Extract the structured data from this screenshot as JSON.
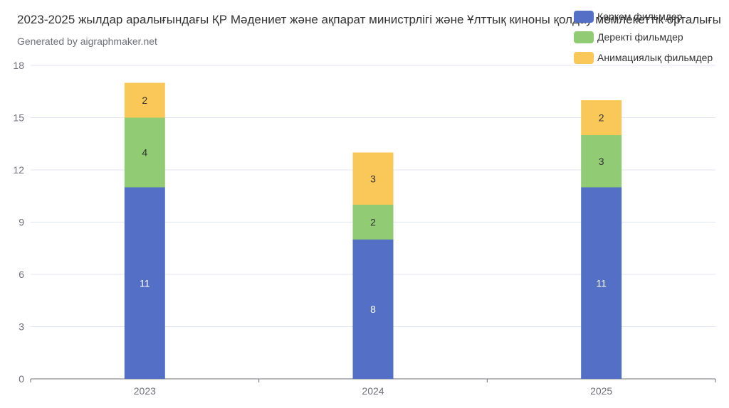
{
  "header": {
    "title": "2023-2025 жылдар аралығындағы ҚР Мәдениет және ақпарат министрлігі және Ұлттық киноны қолдау мемлекеттік орталығы",
    "subtitle": "Generated by aigraphmaker.net"
  },
  "legend": {
    "items": [
      {
        "label": "Көркем фильмдер",
        "color": "#5470c6"
      },
      {
        "label": "Деректі фильмдер",
        "color": "#91cc75"
      },
      {
        "label": "Анимациялық фильмдер",
        "color": "#fac858"
      }
    ]
  },
  "chart_data": {
    "type": "bar",
    "stacked": true,
    "categories": [
      "2023",
      "2024",
      "2025"
    ],
    "series": [
      {
        "name": "Көркем фильмдер",
        "values": [
          11,
          8,
          11
        ],
        "color": "#5470c6",
        "label_color": "#ffffff"
      },
      {
        "name": "Деректі фильмдер",
        "values": [
          4,
          2,
          3
        ],
        "color": "#91cc75",
        "label_color": "#333333"
      },
      {
        "name": "Анимациялық фильмдер",
        "values": [
          2,
          3,
          2
        ],
        "color": "#fac858",
        "label_color": "#333333"
      }
    ],
    "ylim": [
      0,
      18
    ],
    "yticks": [
      0,
      3,
      6,
      9,
      12,
      15,
      18
    ],
    "grid": true,
    "legend_position": "top-right"
  }
}
